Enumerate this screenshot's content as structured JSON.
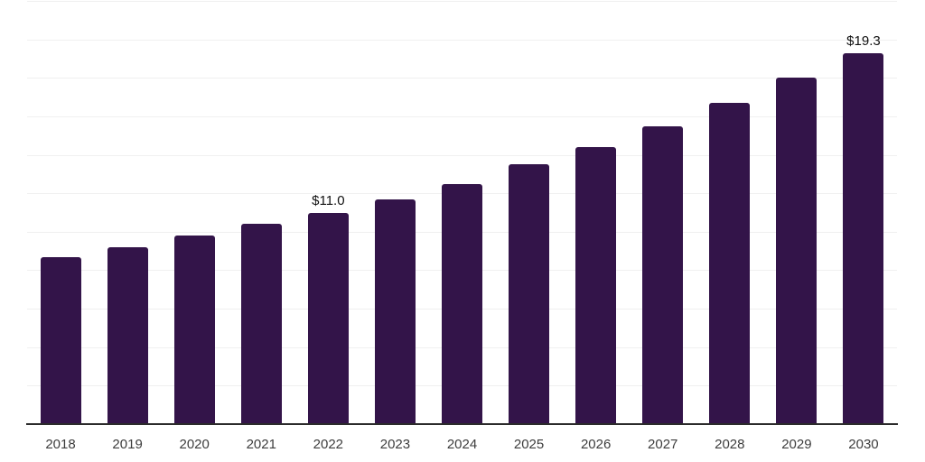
{
  "chart_data": {
    "type": "bar",
    "title": "",
    "xlabel": "",
    "ylabel": "",
    "categories": [
      "2018",
      "2019",
      "2020",
      "2021",
      "2022",
      "2023",
      "2024",
      "2025",
      "2026",
      "2027",
      "2028",
      "2029",
      "2030"
    ],
    "values": [
      8.7,
      9.2,
      9.8,
      10.4,
      11.0,
      11.7,
      12.5,
      13.5,
      14.4,
      15.5,
      16.7,
      18.0,
      19.3
    ],
    "data_labels": {
      "2022": "$11.0",
      "2030": "$19.3"
    },
    "ylim": [
      0,
      22
    ],
    "gridline_step": 2,
    "grid": "horizontal",
    "legend": "none",
    "y_tick_labels_visible": false,
    "colors": {
      "bar": "#331449",
      "gridline": "#f0f0f0",
      "axis_line": "#2b2b2b",
      "tick_label": "#3d3d3d",
      "data_label": "#111111",
      "background": "#ffffff"
    }
  }
}
